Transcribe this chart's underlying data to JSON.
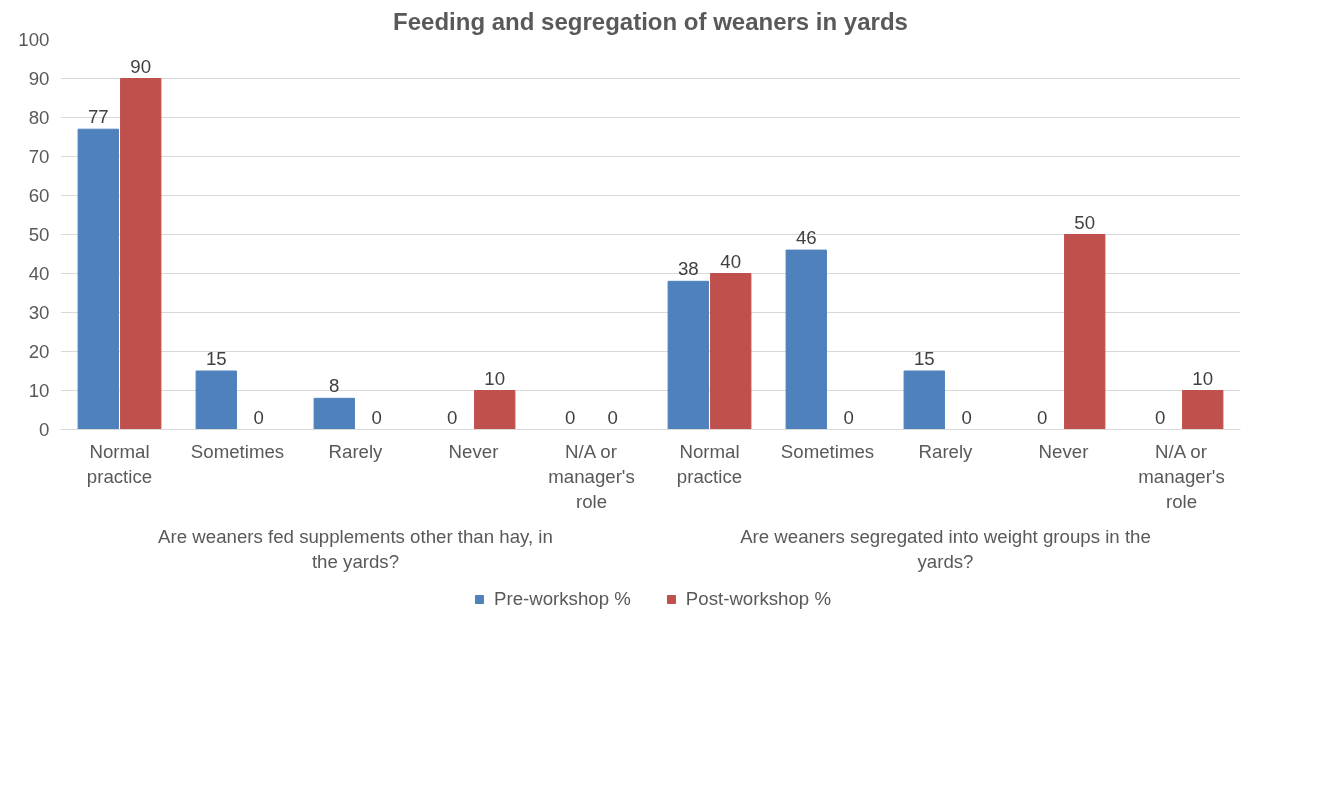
{
  "chart_data": {
    "type": "bar",
    "title": "Feeding and segregation of weaners in yards",
    "categories": [
      "Normal practice",
      "Sometimes",
      "Rarely",
      "Never",
      "N/A or manager's role",
      "Normal practice",
      "Sometimes",
      "Rarely",
      "Never",
      "N/A or manager's role"
    ],
    "annotations": [
      "Are weaners fed supplements other than hay, in the yards?",
      "Are weaners segregated into weight groups in the yards?"
    ],
    "series": [
      {
        "name": "Pre-workshop %",
        "color": "#4f81bd",
        "values": [
          77,
          15,
          8,
          0,
          0,
          38,
          46,
          15,
          0,
          0
        ]
      },
      {
        "name": "Post-workshop %",
        "color": "#c0504d",
        "values": [
          90,
          0,
          0,
          10,
          0,
          40,
          0,
          0,
          50,
          10
        ]
      }
    ],
    "ylim": [
      0,
      100
    ],
    "yticks": [
      0,
      10,
      20,
      30,
      40,
      50,
      60,
      70,
      80,
      90,
      100
    ],
    "grid": "y",
    "legend": "bottom",
    "data_labels": true
  }
}
